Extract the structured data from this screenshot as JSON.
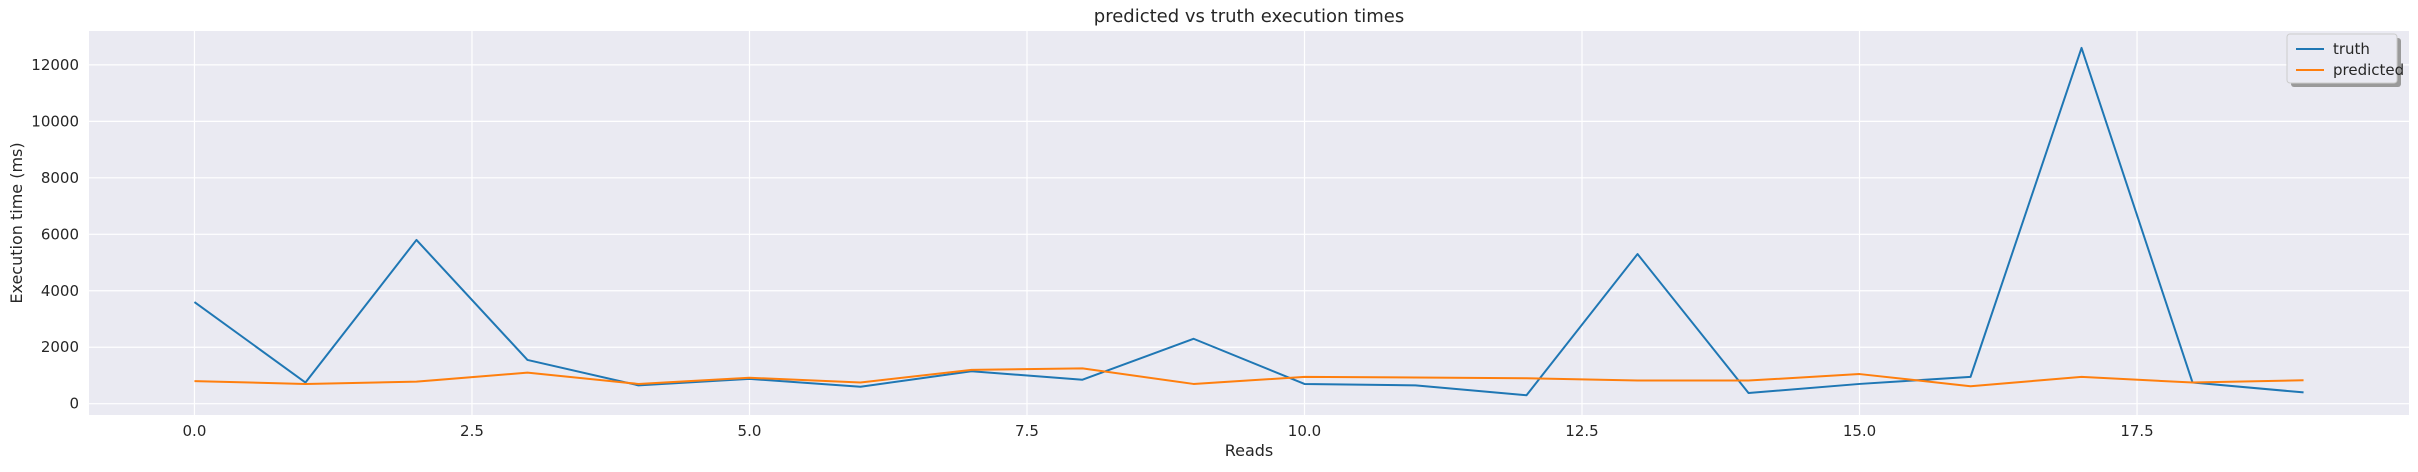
{
  "chart_data": {
    "type": "line",
    "title": "predicted vs truth execution times",
    "xlabel": "Reads",
    "ylabel": "Execution time (ms)",
    "xlim": [
      -0.95,
      19.95
    ],
    "ylim": [
      -400,
      13200
    ],
    "grid": true,
    "legend_position": "top-right",
    "x_ticks": [
      0.0,
      2.5,
      5.0,
      7.5,
      10.0,
      12.5,
      15.0,
      17.5
    ],
    "x_tick_labels": [
      "0.0",
      "2.5",
      "5.0",
      "7.5",
      "10.0",
      "12.5",
      "15.0",
      "17.5"
    ],
    "y_ticks": [
      0,
      2000,
      4000,
      6000,
      8000,
      10000,
      12000
    ],
    "y_tick_labels": [
      "0",
      "2000",
      "4000",
      "6000",
      "8000",
      "10000",
      "12000"
    ],
    "x": [
      0,
      1,
      2,
      3,
      4,
      5,
      6,
      7,
      8,
      9,
      10,
      11,
      12,
      13,
      14,
      15,
      16,
      17,
      18,
      19
    ],
    "series": [
      {
        "name": "truth",
        "color": "#1f77b4",
        "values": [
          3600,
          750,
          5800,
          1550,
          650,
          880,
          600,
          1150,
          850,
          2300,
          700,
          650,
          300,
          5300,
          380,
          700,
          950,
          12600,
          750,
          400
        ]
      },
      {
        "name": "predicted",
        "color": "#ff7f0e",
        "values": [
          800,
          700,
          780,
          1100,
          700,
          920,
          750,
          1200,
          1250,
          700,
          950,
          930,
          900,
          820,
          820,
          1050,
          620,
          950,
          750,
          830
        ]
      }
    ]
  }
}
